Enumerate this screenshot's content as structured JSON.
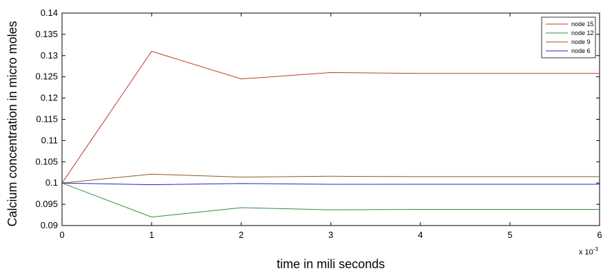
{
  "chart_data": {
    "type": "line",
    "title": "",
    "xlabel": "time in mili seconds",
    "ylabel": "Calcium concentration in micro moles",
    "x_exponent_label": "x 10",
    "x_exponent_power": "-3",
    "xlim": [
      0,
      6
    ],
    "ylim": [
      0.09,
      0.14
    ],
    "x_ticks": [
      "0",
      "1",
      "2",
      "3",
      "4",
      "5",
      "6"
    ],
    "y_ticks": [
      "0.09",
      "0.095",
      "0.1",
      "0.105",
      "0.11",
      "0.115",
      "0.12",
      "0.125",
      "0.13",
      "0.135",
      "0.14"
    ],
    "grid": false,
    "legend_position": "top-right",
    "x": [
      0,
      1,
      2,
      3,
      4,
      5,
      6
    ],
    "series": [
      {
        "name": "node 15",
        "color": "#c0392b",
        "values": [
          0.1,
          0.131,
          0.1245,
          0.126,
          0.1258,
          0.1258,
          0.1258
        ]
      },
      {
        "name": "node 12",
        "color": "#2e8b3a",
        "values": [
          0.1,
          0.092,
          0.0942,
          0.0937,
          0.0938,
          0.0938,
          0.0938
        ]
      },
      {
        "name": "node  9",
        "color": "#8b5a2b",
        "values": [
          0.1,
          0.1021,
          0.1014,
          0.1016,
          0.1015,
          0.1015,
          0.1015
        ]
      },
      {
        "name": "node 6",
        "color": "#2222cc",
        "values": [
          0.1,
          0.0996,
          0.0999,
          0.0997,
          0.0997,
          0.0997,
          0.0997
        ]
      }
    ]
  }
}
